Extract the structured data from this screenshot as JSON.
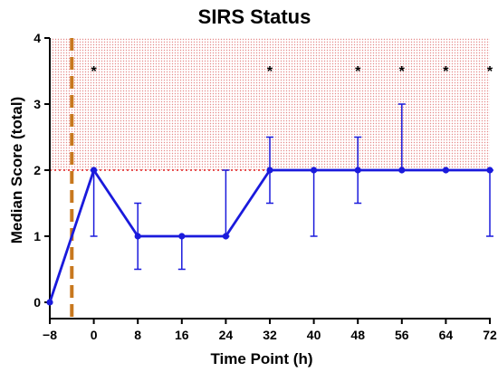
{
  "chart_data": {
    "type": "line",
    "title": "SIRS Status",
    "xlabel": "Time Point (h)",
    "ylabel": "Median Score (total)",
    "xlim": [
      -8,
      72
    ],
    "ylim": [
      0,
      4
    ],
    "x_ticks": [
      -8,
      0,
      8,
      16,
      24,
      32,
      40,
      48,
      56,
      64,
      72
    ],
    "x_tick_labels": [
      "−8",
      "0",
      "8",
      "16",
      "24",
      "32",
      "40",
      "48",
      "56",
      "64",
      "72"
    ],
    "y_ticks": [
      0,
      1,
      2,
      3,
      4
    ],
    "y_tick_labels": [
      "0",
      "1",
      "2",
      "3",
      "4"
    ],
    "grid": false,
    "series": [
      {
        "color": "#1a1adc",
        "x": [
          -8,
          0,
          8,
          16,
          24,
          32,
          40,
          48,
          56,
          64,
          72
        ],
        "y": [
          0,
          2,
          1,
          1,
          1,
          2,
          2,
          2,
          2,
          2,
          2
        ],
        "err_low": [
          0,
          1,
          0.5,
          0.5,
          1,
          1.5,
          1,
          1.5,
          2,
          2,
          1
        ],
        "err_high": [
          0,
          2,
          1.5,
          1,
          2,
          2.5,
          2,
          2.5,
          3,
          2,
          2
        ]
      }
    ],
    "threshold": {
      "y": 2,
      "color": "#e02020"
    },
    "shaded_region": {
      "y_from": 2,
      "y_to": 4,
      "color": "#f4c2c2"
    },
    "vertical_marker": {
      "x": -4,
      "color": "#c8781e"
    },
    "annotations": [
      {
        "text": "*",
        "x": 0
      },
      {
        "text": "*",
        "x": 32
      },
      {
        "text": "*",
        "x": 48
      },
      {
        "text": "*",
        "x": 56
      },
      {
        "text": "*",
        "x": 64
      },
      {
        "text": "*",
        "x": 72
      }
    ]
  }
}
